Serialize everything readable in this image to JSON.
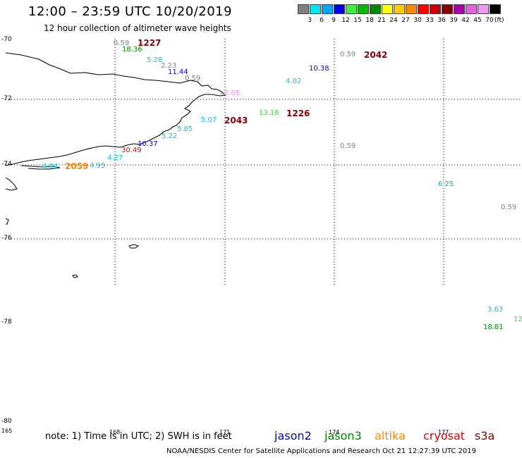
{
  "header": {
    "title": "12:00 – 23:59 UTC 10/20/2019",
    "subtitle": "12 hour collection of altimeter wave heights"
  },
  "legend": {
    "unit": "(ft)",
    "items": [
      {
        "label": "3",
        "color": "#808080"
      },
      {
        "label": "6",
        "color": "#00e5ee"
      },
      {
        "label": "9",
        "color": "#00a8ff"
      },
      {
        "label": "12",
        "color": "#0000ee"
      },
      {
        "label": "15",
        "color": "#44ee44"
      },
      {
        "label": "18",
        "color": "#00bb00"
      },
      {
        "label": "21",
        "color": "#008800"
      },
      {
        "label": "24",
        "color": "#ffff00"
      },
      {
        "label": "27",
        "color": "#ffcc00"
      },
      {
        "label": "30",
        "color": "#ff8800"
      },
      {
        "label": "33",
        "color": "#ff0000"
      },
      {
        "label": "36",
        "color": "#cc0000"
      },
      {
        "label": "39",
        "color": "#880000"
      },
      {
        "label": "42",
        "color": "#aa00aa"
      },
      {
        "label": "45",
        "color": "#dd66dd"
      },
      {
        "label": "70",
        "color": "#ee99ee"
      },
      {
        "label": "",
        "color": "#000000"
      }
    ]
  },
  "axes": {
    "lat_labels": [
      "-70",
      "-72",
      "-74",
      "-76",
      "-78",
      "-80"
    ],
    "lon_labels": [
      "165",
      "168",
      "171",
      "174",
      "177"
    ]
  },
  "observations": [
    {
      "value": "0.59",
      "color": "#808080"
    },
    {
      "value": "18.36",
      "color": "#008800"
    },
    {
      "value": "5.28",
      "color": "#00c8d8"
    },
    {
      "value": "2.23",
      "color": "#808080"
    },
    {
      "value": "11.44",
      "color": "#0000ee"
    },
    {
      "value": "0.59",
      "color": "#808080"
    },
    {
      "value": "2.05",
      "color": "#ee88ee"
    },
    {
      "value": "0.59",
      "color": "#808080"
    },
    {
      "value": "10.38",
      "color": "#0000ee"
    },
    {
      "value": "4.02",
      "color": "#00c8d8"
    },
    {
      "value": "13.16",
      "color": "#44cc44"
    },
    {
      "value": "5.07",
      "color": "#00c8d8"
    },
    {
      "value": "5.85",
      "color": "#00c8d8"
    },
    {
      "value": "5.22",
      "color": "#00c8d8"
    },
    {
      "value": "10.37",
      "color": "#0000ee"
    },
    {
      "value": "30.49",
      "color": "#dd0000"
    },
    {
      "value": "4.27",
      "color": "#00c8d8"
    },
    {
      "value": "4.95",
      "color": "#00c8d8"
    },
    {
      "value": "4.94",
      "color": "#00c8d8"
    },
    {
      "value": "0.59",
      "color": "#808080"
    },
    {
      "value": "6.25",
      "color": "#00a8e0"
    },
    {
      "value": "0.59",
      "color": "#808080"
    },
    {
      "value": "3.63",
      "color": "#00c8d8"
    },
    {
      "value": "18.81",
      "color": "#008800"
    },
    {
      "value": "12",
      "color": "#44cc44"
    }
  ],
  "times": [
    {
      "value": "1227",
      "color": "#880000"
    },
    {
      "value": "2042",
      "color": "#880000"
    },
    {
      "value": "2043",
      "color": "#880000"
    },
    {
      "value": "1226",
      "color": "#880000"
    },
    {
      "value": "2059",
      "color": "#ff8800"
    }
  ],
  "footer": {
    "note": "note: 1) Time is in UTC; 2) SWH is in feet",
    "credit": "NOAA/NESDIS Center for Satellite Applications and Research    Oct 21 12:27:39 UTC 2019",
    "satellites": [
      {
        "name": "jason2",
        "color": "#0000cc"
      },
      {
        "name": "jason3",
        "color": "#008800"
      },
      {
        "name": "altika",
        "color": "#ff8800"
      },
      {
        "name": "cryosat",
        "color": "#dd0000"
      },
      {
        "name": "s3a",
        "color": "#880000"
      }
    ]
  }
}
